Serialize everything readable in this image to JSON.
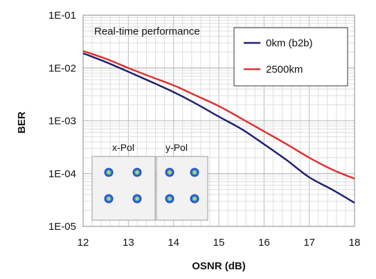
{
  "chart_data": {
    "type": "line",
    "xlabel": "OSNR (dB)",
    "ylabel": "BER",
    "xlim": [
      12,
      18
    ],
    "ylim": [
      1e-05,
      0.1
    ],
    "yscale": "log",
    "grid": true,
    "xticks": [
      "12",
      "13",
      "14",
      "15",
      "16",
      "17",
      "18"
    ],
    "yticks": [
      "1E-05",
      "1E-04",
      "1E-03",
      "1E-02",
      "1E-01"
    ],
    "annotation": "Real-time performance",
    "legend_position": "top-right",
    "series": [
      {
        "name": "0km (b2b)",
        "color": "#1f1f6e",
        "x": [
          12,
          12.5,
          13,
          13.5,
          14,
          14.5,
          15,
          15.5,
          16,
          16.5,
          17,
          17.5,
          18
        ],
        "y": [
          0.019,
          0.013,
          0.0085,
          0.0055,
          0.0035,
          0.0021,
          0.0012,
          0.0007,
          0.00036,
          0.00018,
          8.5e-05,
          5e-05,
          2.8e-05
        ]
      },
      {
        "name": "2500km",
        "color": "#e03030",
        "x": [
          12,
          12.5,
          13,
          13.5,
          14,
          14.5,
          15,
          15.5,
          16,
          16.5,
          17,
          17.5,
          18
        ],
        "y": [
          0.021,
          0.015,
          0.01,
          0.0068,
          0.0047,
          0.003,
          0.0019,
          0.0011,
          0.00063,
          0.00036,
          0.0002,
          0.00012,
          8e-05
        ]
      }
    ],
    "insets": [
      {
        "title": "x-Pol"
      },
      {
        "title": "y-Pol"
      }
    ]
  }
}
